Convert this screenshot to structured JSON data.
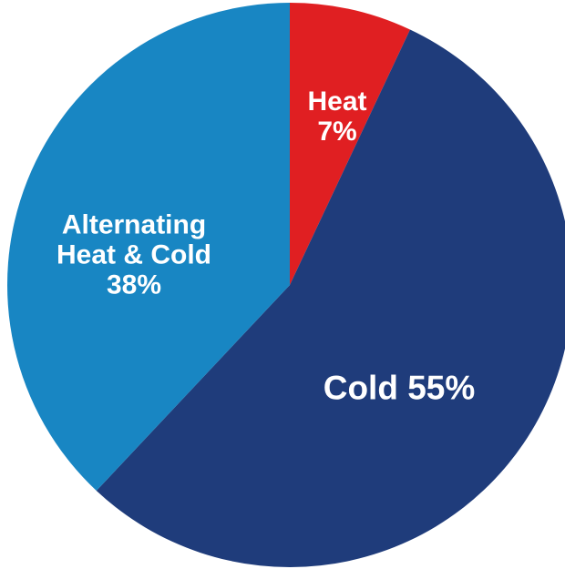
{
  "chart_data": {
    "type": "pie",
    "categories": [
      "Heat",
      "Cold",
      "Alternating Heat & Cold"
    ],
    "values": [
      7,
      55,
      38
    ],
    "value_labels": [
      "7%",
      "55%",
      "38%"
    ],
    "colors": [
      "#e01f22",
      "#1f3c7b",
      "#1886c3"
    ]
  }
}
